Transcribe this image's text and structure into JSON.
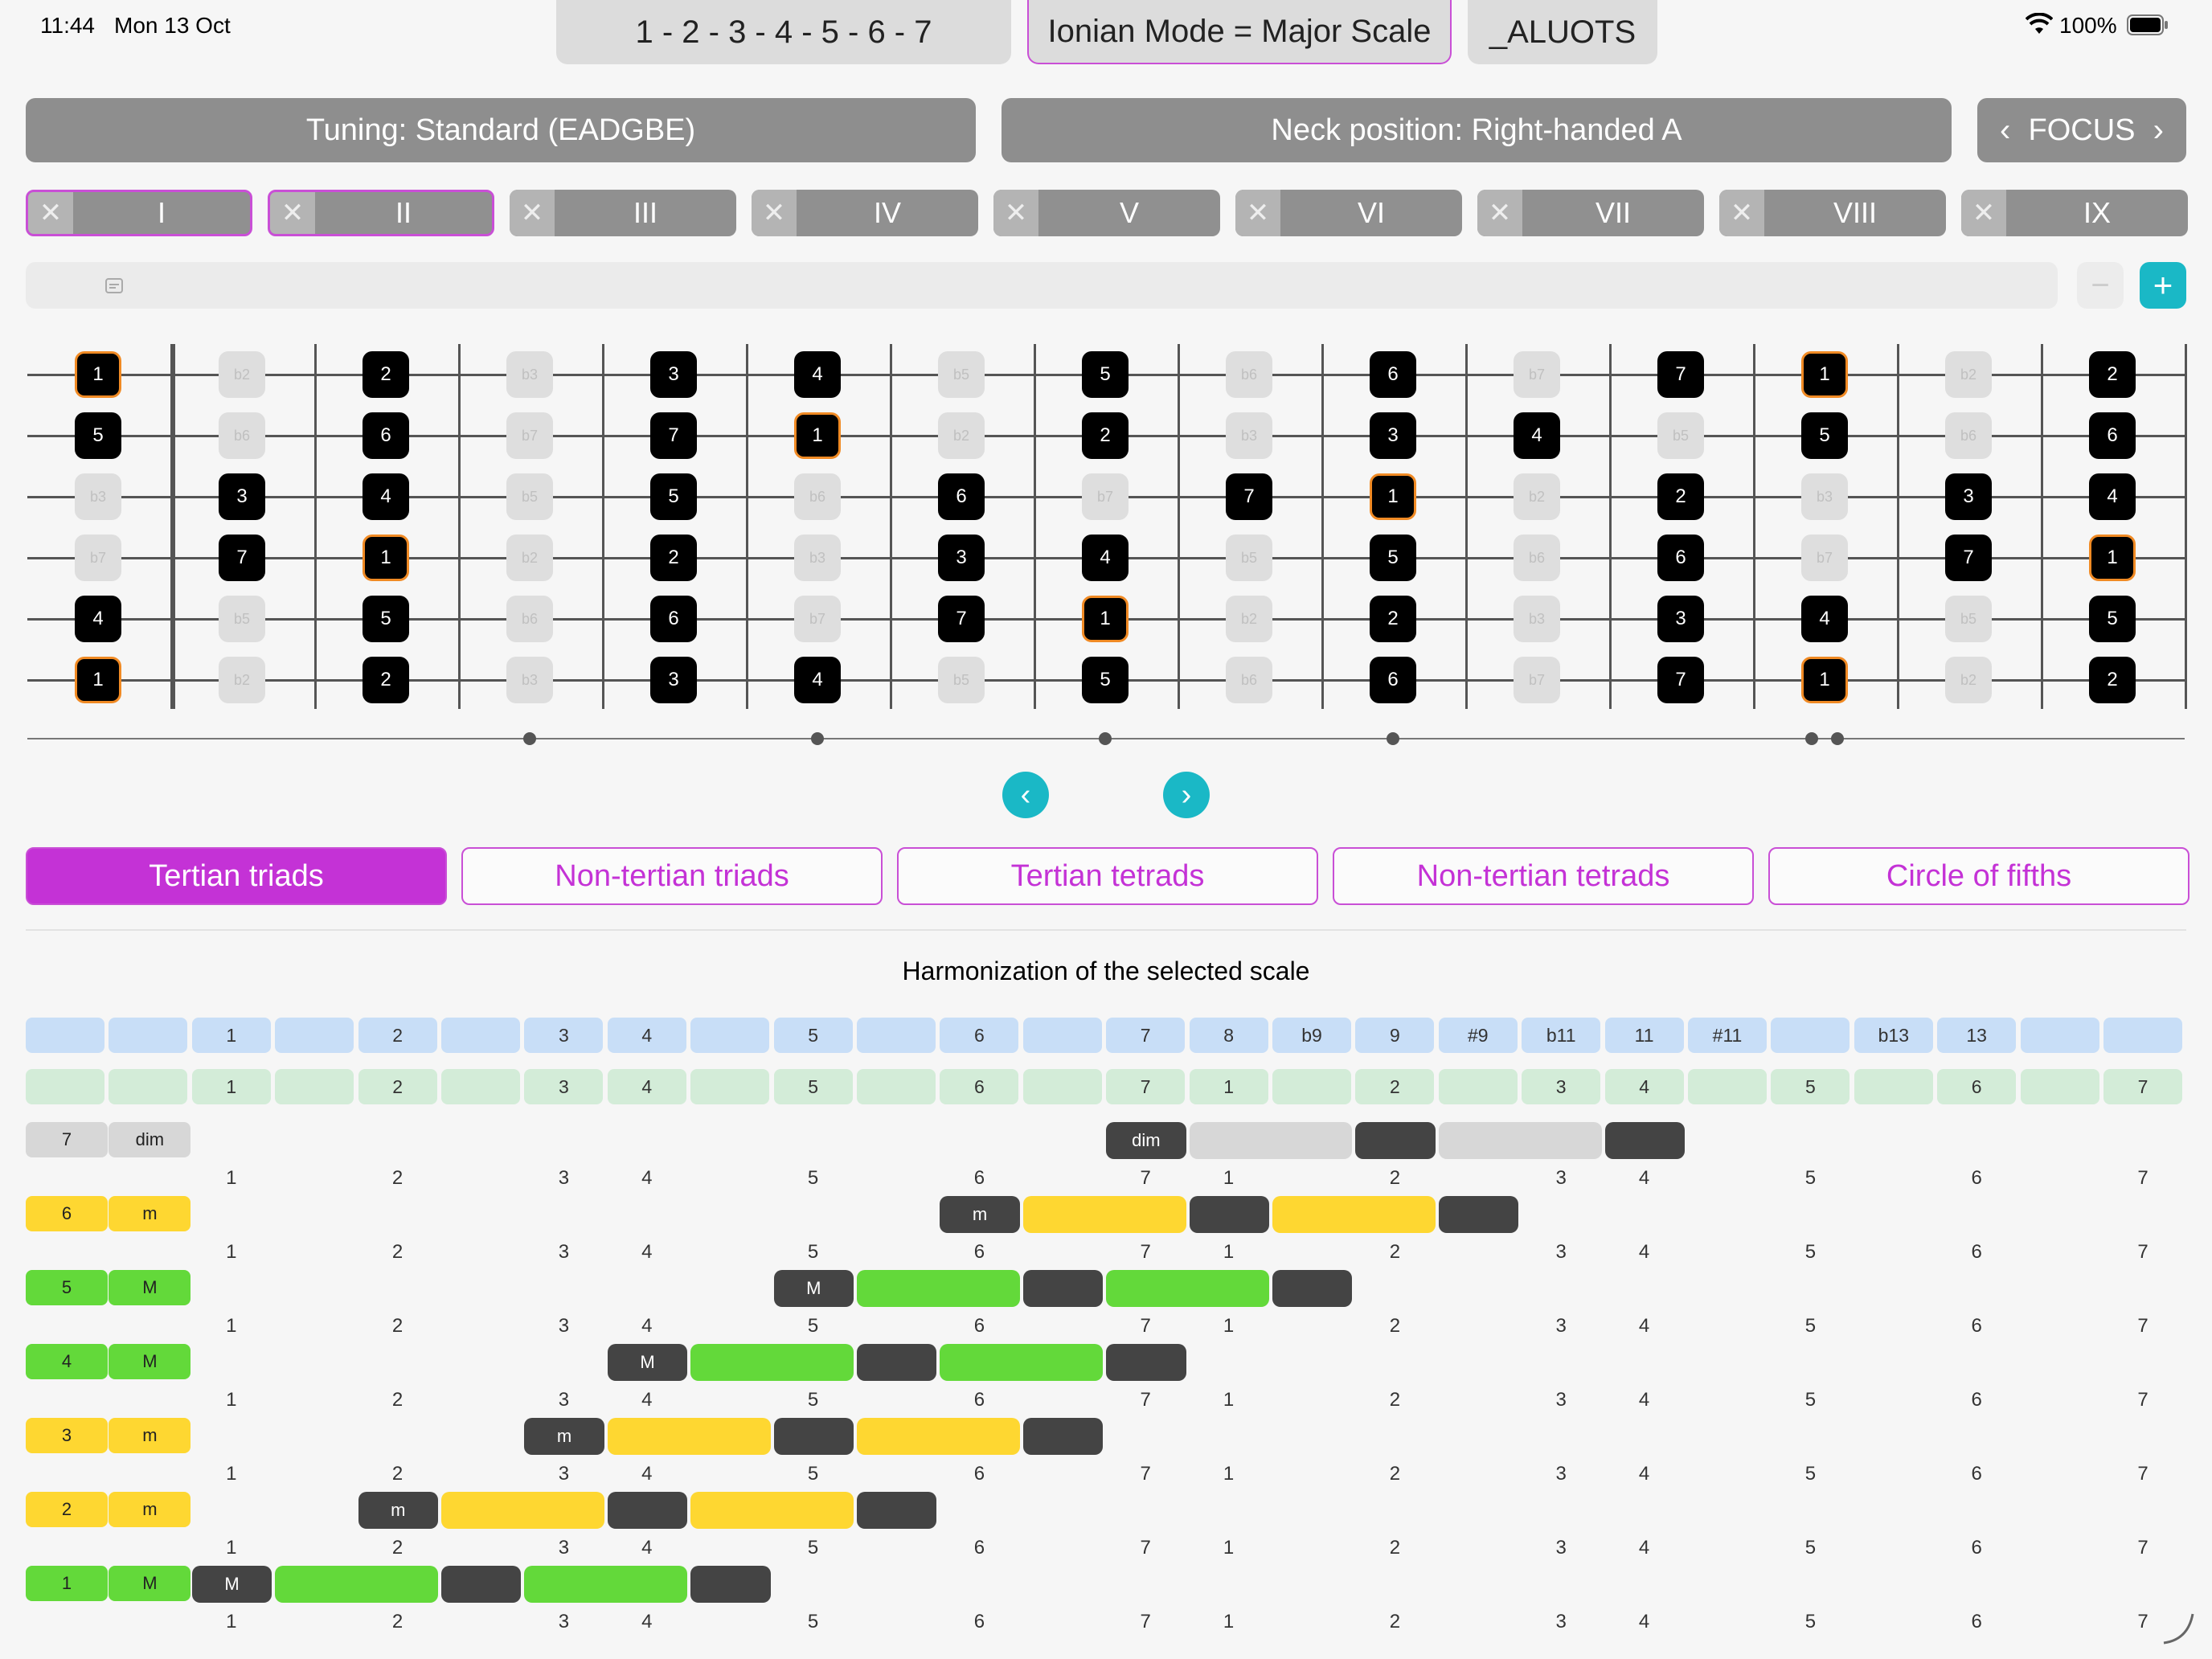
{
  "status": {
    "time": "11:44",
    "date": "Mon 13 Oct",
    "battery": "100%"
  },
  "header": {
    "degrees": "1 - 2 - 3 - 4 - 5 - 6 - 7",
    "mode": "Ionian Mode = Major Scale",
    "app_name": "_ALUOTS"
  },
  "controls": {
    "tuning": "Tuning: Standard (EADGBE)",
    "neck": "Neck position: Right-handed A",
    "focus": "FOCUS"
  },
  "positions": [
    {
      "label": "I",
      "selected": true
    },
    {
      "label": "II",
      "selected": true
    },
    {
      "label": "III",
      "selected": false
    },
    {
      "label": "IV",
      "selected": false
    },
    {
      "label": "V",
      "selected": false
    },
    {
      "label": "VI",
      "selected": false
    },
    {
      "label": "VII",
      "selected": false
    },
    {
      "label": "VIII",
      "selected": false
    },
    {
      "label": "IX",
      "selected": false
    }
  ],
  "fretboard": {
    "strings": [
      [
        "1",
        "b2",
        "2",
        "b3",
        "3",
        "4",
        "b5",
        "5",
        "b6",
        "6",
        "b7",
        "7",
        "1",
        "b2",
        "2"
      ],
      [
        "5",
        "b6",
        "6",
        "b7",
        "7",
        "1",
        "b2",
        "2",
        "b3",
        "3",
        "4",
        "b5",
        "5",
        "b6",
        "6"
      ],
      [
        "b3",
        "3",
        "4",
        "b5",
        "5",
        "b6",
        "6",
        "b7",
        "7",
        "1",
        "b2",
        "2",
        "b3",
        "3",
        "4"
      ],
      [
        "b7",
        "7",
        "1",
        "b2",
        "2",
        "b3",
        "3",
        "4",
        "b5",
        "5",
        "b6",
        "6",
        "b7",
        "7",
        "1"
      ],
      [
        "4",
        "b5",
        "5",
        "b6",
        "6",
        "b7",
        "7",
        "1",
        "b2",
        "2",
        "b3",
        "3",
        "4",
        "b5",
        "5"
      ],
      [
        "1",
        "b2",
        "2",
        "b3",
        "3",
        "4",
        "b5",
        "5",
        "b6",
        "6",
        "b7",
        "7",
        "1",
        "b2",
        "2"
      ]
    ],
    "scale_degrees": [
      "1",
      "2",
      "3",
      "4",
      "5",
      "6",
      "7"
    ]
  },
  "tabs": [
    {
      "label": "Tertian triads",
      "active": true
    },
    {
      "label": "Non-tertian triads",
      "active": false
    },
    {
      "label": "Tertian tetrads",
      "active": false
    },
    {
      "label": "Non-tertian tetrads",
      "active": false
    },
    {
      "label": "Circle of fifths",
      "active": false
    }
  ],
  "harmonization": {
    "title": "Harmonization of the selected scale",
    "intervals": [
      "",
      "",
      "1",
      "",
      "2",
      "",
      "3",
      "4",
      "",
      "5",
      "",
      "6",
      "",
      "7",
      "8",
      "b9",
      "9",
      "#9",
      "b11",
      "11",
      "#11",
      "",
      "b13",
      "13",
      "",
      ""
    ],
    "degrees": [
      "",
      "",
      "1",
      "",
      "2",
      "",
      "3",
      "4",
      "",
      "5",
      "",
      "6",
      "",
      "7",
      "1",
      "",
      "2",
      "",
      "3",
      "4",
      "",
      "5",
      "",
      "6",
      "",
      "7"
    ],
    "number_row": [
      "1",
      "2",
      "3",
      "4",
      "5",
      "6",
      "7",
      "1",
      "2",
      "3",
      "4",
      "5",
      "6",
      "7"
    ],
    "rows": [
      {
        "degree": "7",
        "quality": "dim",
        "color": "grey",
        "start": 13
      },
      {
        "degree": "6",
        "quality": "m",
        "color": "yellow",
        "start": 11
      },
      {
        "degree": "5",
        "quality": "M",
        "color": "green",
        "start": 9
      },
      {
        "degree": "4",
        "quality": "M",
        "color": "green",
        "start": 7
      },
      {
        "degree": "3",
        "quality": "m",
        "color": "yellow",
        "start": 6
      },
      {
        "degree": "2",
        "quality": "m",
        "color": "yellow",
        "start": 4
      },
      {
        "degree": "1",
        "quality": "M",
        "color": "green",
        "start": 2
      }
    ]
  }
}
